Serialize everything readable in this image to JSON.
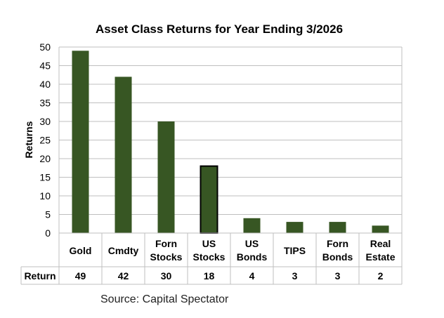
{
  "chart_data": {
    "type": "bar",
    "title": "Asset Class Returns for Year Ending 3/2026",
    "xlabel": "",
    "ylabel": "Returns",
    "ylim": [
      0,
      50
    ],
    "yticks": [
      0,
      5,
      10,
      15,
      20,
      25,
      30,
      35,
      40,
      45,
      50
    ],
    "grid": true,
    "legend": "none",
    "categories": [
      [
        "Gold"
      ],
      [
        "Cmdty"
      ],
      [
        "Forn",
        "Stocks"
      ],
      [
        "US",
        "Stocks"
      ],
      [
        "US",
        "Bonds"
      ],
      [
        "TIPS"
      ],
      [
        "Forn",
        "Bonds"
      ],
      [
        "Real",
        "Estate"
      ]
    ],
    "series": [
      {
        "name": "Return",
        "values": [
          49,
          42,
          30,
          18,
          4,
          3,
          3,
          2
        ]
      }
    ],
    "highlighted_category_index": 3,
    "colors": {
      "bar": "#375623",
      "highlight_border": "#000000",
      "grid": "#bfbfbf",
      "table_border": "#bfbfbf"
    }
  },
  "source_text": "Source: Capital Spectator"
}
